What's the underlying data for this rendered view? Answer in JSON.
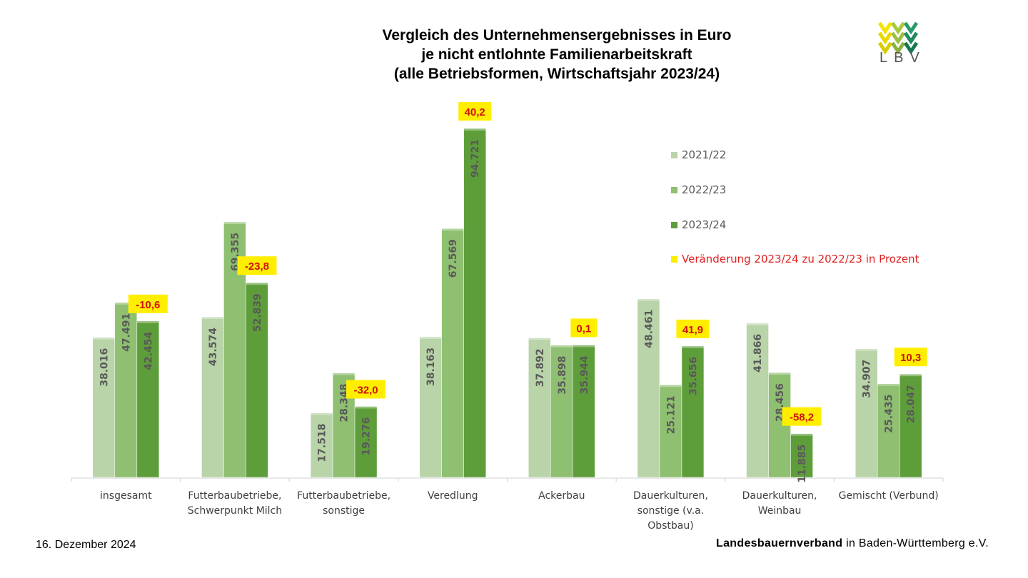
{
  "title_lines": [
    "Vergleich des Unternehmensergebnisses in Euro",
    "je nicht entlohnte Familienarbeitskraft",
    "(alle Betriebsformen, Wirtschaftsjahr 2023/24)"
  ],
  "logo": {
    "text": "LBV"
  },
  "footer": {
    "date": "16. Dezember 2024",
    "org_bold": "Landesbauernverband",
    "org_rest": " in Baden-Württemberg e.V."
  },
  "legend": [
    {
      "label": "2021/22",
      "color": "#b8d4a8",
      "text_color": "#595959"
    },
    {
      "label": "2022/23",
      "color": "#8fbf70",
      "text_color": "#595959"
    },
    {
      "label": "2023/24",
      "color": "#5e9e3a",
      "text_color": "#595959"
    },
    {
      "label": "Veränderung 2023/24 zu 2022/23 in Prozent",
      "color": "#ffee00",
      "text_color": "#e02020"
    }
  ],
  "chart_data": {
    "type": "bar",
    "categories": [
      [
        "insgesamt"
      ],
      [
        "Futterbaubetriebe,",
        "Schwerpunkt Milch"
      ],
      [
        "Futterbaubetriebe,",
        "sonstige"
      ],
      [
        "Veredlung"
      ],
      [
        "Ackerbau"
      ],
      [
        "Dauerkulturen,",
        "sonstige (v.a.",
        "Obstbau)"
      ],
      [
        "Dauerkulturen,",
        "Weinbau"
      ],
      [
        "Gemischt (Verbund)"
      ]
    ],
    "series": [
      {
        "name": "2021/22",
        "values": [
          38016,
          43574,
          17518,
          38163,
          37892,
          48461,
          41866,
          34907
        ],
        "labels": [
          "38.016",
          "43.574",
          "17.518",
          "38.163",
          "37.892",
          "48.461",
          "41.866",
          "34.907"
        ],
        "color": "#b8d4a8"
      },
      {
        "name": "2022/23",
        "values": [
          47491,
          69355,
          28348,
          67569,
          35898,
          25121,
          28456,
          25435
        ],
        "labels": [
          "47.491",
          "69.355",
          "28.348",
          "67.569",
          "35.898",
          "25.121",
          "28.456",
          "25.435"
        ],
        "color": "#8fbf70"
      },
      {
        "name": "2023/24",
        "values": [
          42454,
          52839,
          19276,
          94721,
          35944,
          35656,
          11885,
          28047
        ],
        "labels": [
          "42.454",
          "52.839",
          "19.276",
          "94.721",
          "35.944",
          "35.656",
          "11.885",
          "28.047"
        ],
        "color": "#5e9e3a"
      }
    ],
    "change_percent": [
      "-10,6",
      "-23,8",
      "-32,0",
      "40,2",
      "0,1",
      "41,9",
      "-58,2",
      "10,3"
    ],
    "ylim": [
      0,
      97000
    ],
    "grid": false,
    "legend_position": "right"
  }
}
